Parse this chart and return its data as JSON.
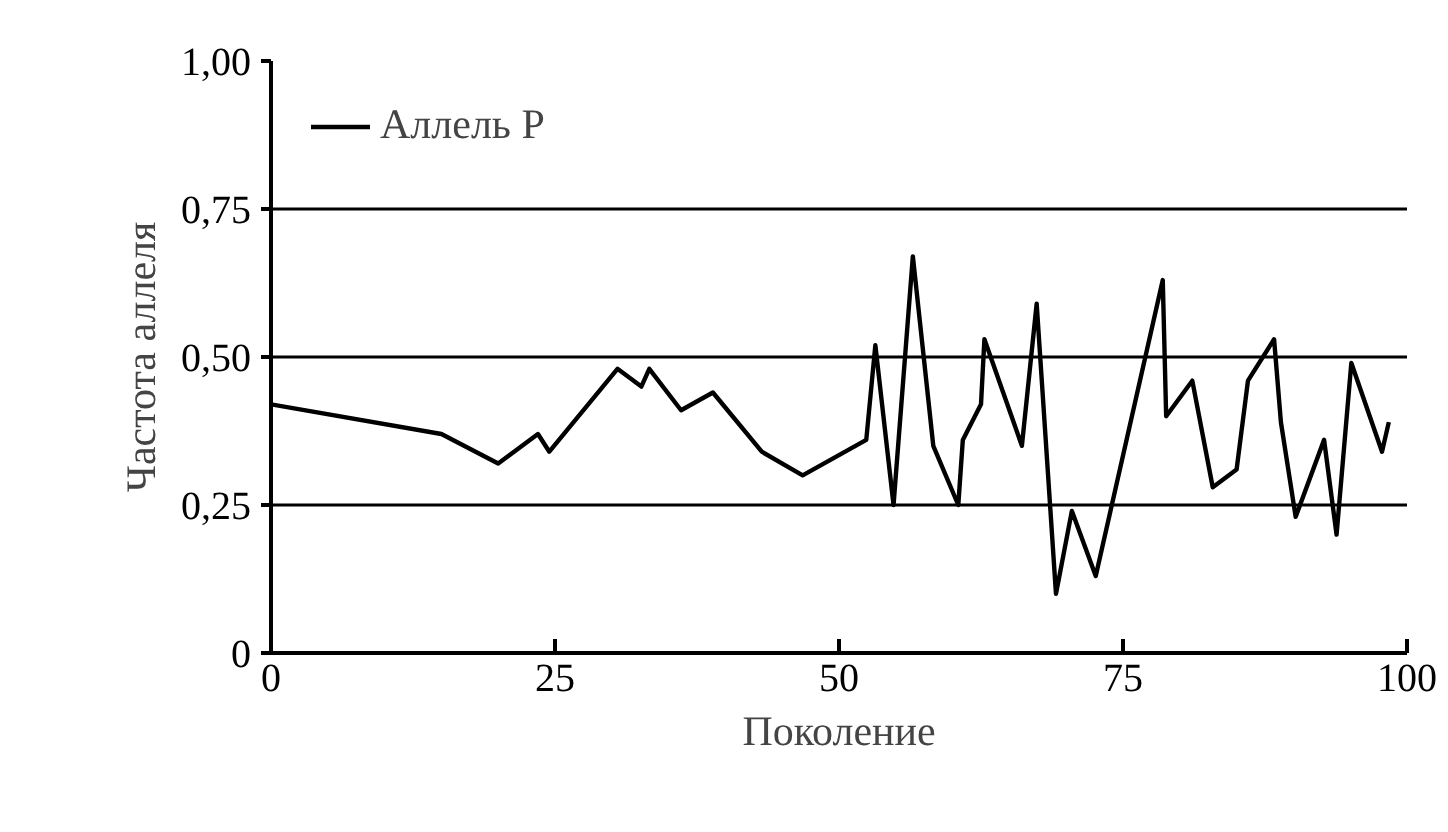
{
  "chart_data": {
    "type": "line",
    "xlabel": "Поколение",
    "ylabel": "Частота аллеля",
    "x": [
      0,
      15,
      20,
      23.5,
      24.5,
      30.5,
      32.6,
      33.3,
      36.1,
      38.9,
      43.2,
      46.8,
      52.4,
      53.2,
      54.8,
      56.5,
      58.3,
      60.5,
      60.9,
      62.5,
      62.8,
      66.1,
      67.4,
      69.1,
      70.5,
      72.6,
      78.5,
      78.8,
      81.1,
      82.9,
      85,
      86,
      88.3,
      88.9,
      90.2,
      92.7,
      93.8,
      95.1,
      97.8,
      98.4
    ],
    "series": [
      {
        "name": "Аллель P",
        "color": "#000000",
        "values": [
          0.42,
          0.37,
          0.32,
          0.37,
          0.34,
          0.48,
          0.45,
          0.48,
          0.41,
          0.44,
          0.34,
          0.3,
          0.36,
          0.52,
          0.25,
          0.67,
          0.35,
          0.25,
          0.36,
          0.42,
          0.53,
          0.35,
          0.59,
          0.1,
          0.24,
          0.13,
          0.63,
          0.4,
          0.46,
          0.28,
          0.31,
          0.46,
          0.53,
          0.39,
          0.23,
          0.36,
          0.2,
          0.49,
          0.34,
          0.39
        ]
      }
    ],
    "xlim": [
      0,
      100
    ],
    "xticks": [
      0,
      25,
      50,
      75,
      100
    ],
    "ylim": [
      0,
      1
    ],
    "yticks": [
      {
        "value": 0,
        "label": "0"
      },
      {
        "value": 0.25,
        "label": "0,25"
      },
      {
        "value": 0.5,
        "label": "0,50"
      },
      {
        "value": 0.75,
        "label": "0,75"
      },
      {
        "value": 1,
        "label": "1,00"
      }
    ],
    "grid": "y",
    "legend": "top left",
    "line_style": "solid",
    "marker": "none"
  }
}
